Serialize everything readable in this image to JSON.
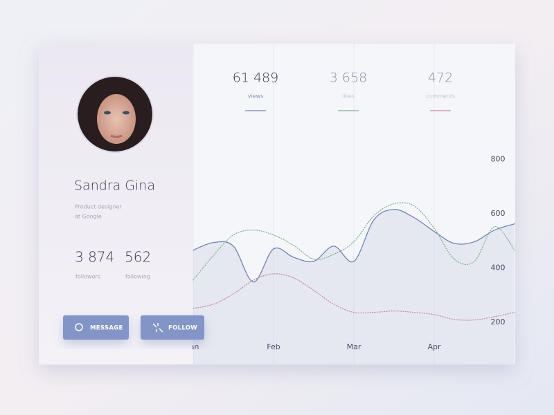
{
  "profile": {
    "name": "Sandra Gina",
    "role": [
      "Product designer",
      "at Google"
    ],
    "counts": [
      {
        "value": "3 874",
        "label": "followers"
      },
      {
        "value": "562",
        "label": "following"
      }
    ]
  },
  "buttons": [
    "MESSAGE",
    "FOLLOW"
  ],
  "stats": [
    {
      "value": "61 489",
      "label": "views"
    },
    {
      "value": "3 658",
      "label": "likes"
    },
    {
      "value": "472",
      "label": "comments"
    }
  ],
  "chart_data": {
    "type": "line",
    "x": [
      1,
      1.25,
      1.5,
      1.75,
      2,
      2.25,
      2.5,
      2.75,
      3,
      3.25,
      3.5,
      3.75,
      4,
      4.25,
      4.5,
      4.75,
      5
    ],
    "xlim": [
      1,
      5
    ],
    "xticks": [
      {
        "value": 1,
        "label": "Jan"
      },
      {
        "value": 2,
        "label": "Feb"
      },
      {
        "value": 3,
        "label": "Mar"
      },
      {
        "value": 4,
        "label": "Apr"
      }
    ],
    "ylim": [
      100,
      900
    ],
    "yticks": [
      200,
      400,
      600,
      800
    ],
    "xgrid": true,
    "series": [
      {
        "color": "#7282b4",
        "fill": true,
        "dotted": false,
        "values": [
          465,
          493,
          480,
          348,
          470,
          439,
          424,
          480,
          424,
          577,
          615,
          585,
          534,
          490,
          496,
          539,
          562
        ]
      },
      {
        "color": "#7fb08a",
        "fill": false,
        "dotted": true,
        "values": [
          355,
          445,
          521,
          539,
          521,
          483,
          432,
          450,
          496,
          592,
          636,
          628,
          546,
          432,
          424,
          552,
          465
        ]
      },
      {
        "color": "#c88aa0",
        "fill": false,
        "dotted": true,
        "values": [
          251,
          266,
          304,
          355,
          378,
          363,
          317,
          266,
          236,
          236,
          241,
          236,
          228,
          210,
          208,
          220,
          236
        ]
      }
    ]
  }
}
